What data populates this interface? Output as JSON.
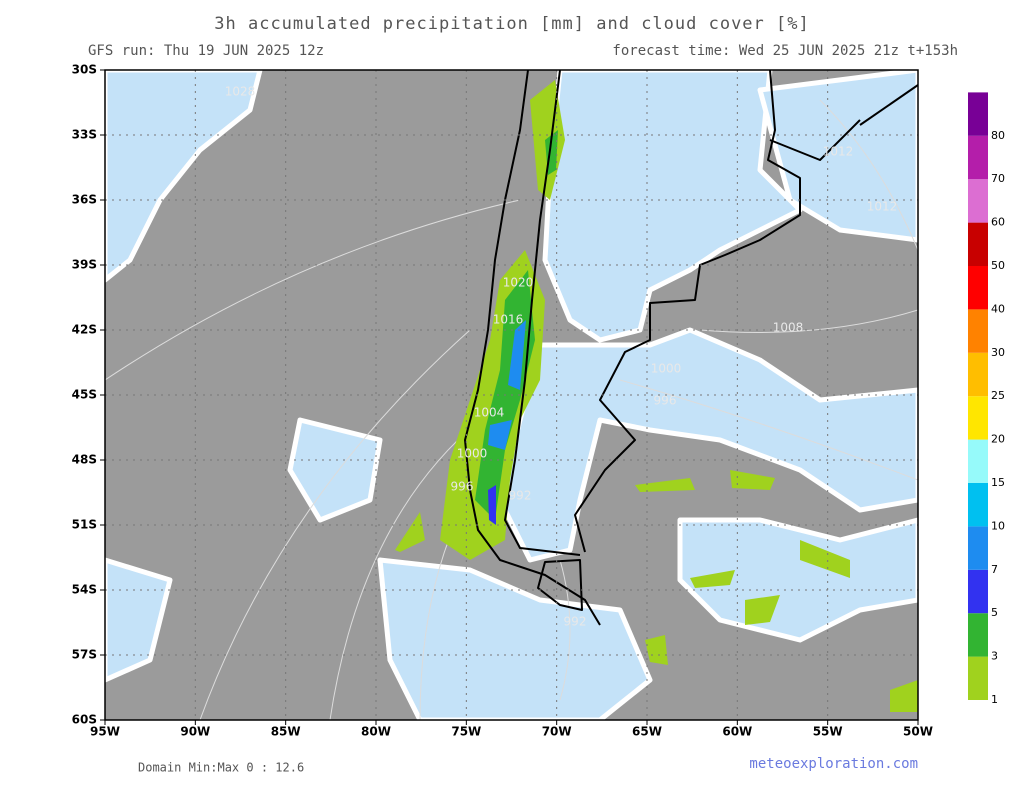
{
  "header": {
    "title": "3h accumulated precipitation [mm] and cloud cover [%]",
    "run": "GFS run: Thu 19 JUN 2025 12z",
    "forecast": "forecast time: Wed 25 JUN 2025 21z  t+153h"
  },
  "map": {
    "xlim": [
      -95,
      -50
    ],
    "ylim": [
      -60,
      -30
    ],
    "xticks": [
      {
        "value": -95,
        "label": "95W"
      },
      {
        "value": -90,
        "label": "90W"
      },
      {
        "value": -85,
        "label": "85W"
      },
      {
        "value": -80,
        "label": "80W"
      },
      {
        "value": -75,
        "label": "75W"
      },
      {
        "value": -70,
        "label": "70W"
      },
      {
        "value": -65,
        "label": "65W"
      },
      {
        "value": -60,
        "label": "60W"
      },
      {
        "value": -55,
        "label": "55W"
      },
      {
        "value": -50,
        "label": "50W"
      }
    ],
    "yticks": [
      {
        "value": -30,
        "label": "30S"
      },
      {
        "value": -33,
        "label": "33S"
      },
      {
        "value": -36,
        "label": "36S"
      },
      {
        "value": -39,
        "label": "39S"
      },
      {
        "value": -42,
        "label": "42S"
      },
      {
        "value": -45,
        "label": "45S"
      },
      {
        "value": -48,
        "label": "48S"
      },
      {
        "value": -51,
        "label": "51S"
      },
      {
        "value": -54,
        "label": "54S"
      },
      {
        "value": -57,
        "label": "57S"
      },
      {
        "value": -60,
        "label": "60S"
      }
    ],
    "grid": true,
    "isobar_labels": [
      "1028",
      "1012",
      "1012",
      "1020",
      "1016",
      "1008",
      "1000",
      "996",
      "1004",
      "1000",
      "996",
      "992",
      "992"
    ]
  },
  "colorbar": {
    "levels": [
      1,
      3,
      5,
      7,
      10,
      15,
      20,
      25,
      30,
      40,
      50,
      60,
      70,
      80
    ],
    "colors": [
      "#a0d21e",
      "#32b432",
      "#3232f0",
      "#1e8cf0",
      "#00c0f0",
      "#96fafa",
      "#ffe600",
      "#ffbe00",
      "#ff8200",
      "#ff0000",
      "#c80000",
      "#dc6ed2",
      "#b41eaa",
      "#780096"
    ]
  },
  "footer": {
    "domain": "Domain Min:Max 0 : 12.6",
    "site": "meteoexploration.com"
  }
}
